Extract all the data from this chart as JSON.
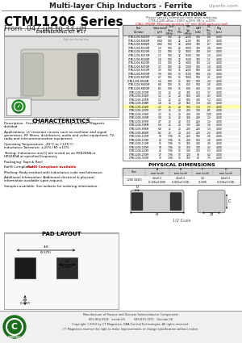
{
  "title_header": "Multi-layer Chip Inductors - Ferrite",
  "website": "ciparts.com",
  "series_title": "CTML1206 Series",
  "series_subtitle": "From .047 μH to 33 μH",
  "eng_kit": "ENGINEERING KIT #17",
  "characteristics_title": "CHARACTERISTICS",
  "char_lines": [
    "Description:  Ferrite core, multi-layer chip inductor. Magnetic",
    "shielded.",
    "",
    "Applications: LC resonant circuits such as oscillator and signal",
    "generators, RF filters, distributors, audio and video equipment, TV,",
    "radio and telecommunication equipment.",
    "",
    "Operating Temperature: -40°C to +125°C",
    "Inductance Tolerance: ±20% (M) ±10%",
    "",
    "Testing: Inductance and Q are tested on an HP4286A or",
    "HP4285A at specified frequency.",
    "",
    "Packaging: Tape & Reel",
    "",
    "RoHS Compliance: ||RoHS-Compliant available",
    "",
    "Marking: Body-marked with inductance code and tolerance.",
    "",
    "Additional Information: Additional electrical & physical",
    "information available upon request.",
    "",
    "Samples available. See website for ordering information."
  ],
  "pad_layout_title": "PAD LAYOUT",
  "spec_title": "SPECIFICATIONS",
  "spec_note1": "Please specify tolerance code when ordering.",
  "spec_note2": "CTML1206-xRxx / 1007 ±20% (M) x ±10%",
  "spec_note3": "(CALL ORDER) Minimum quantity 10\" reel (4000 parts per reel)",
  "spec_columns": [
    "Part\nNumber",
    "Inductance\n(μH)",
    "L Test\nFreq\n(MHz)",
    "Q\nMin.",
    "SRF\nTyp.\n(MHz)",
    "ISAT\n(mA)",
    "DC\nRes.\n(Ω)",
    "Pkg\n(pcs)"
  ],
  "spec_data": [
    [
      "CTML1206-R047M",
      ".047",
      "100",
      "12",
      "2200",
      "700",
      ".06",
      "4000"
    ],
    [
      "CTML1206-R068M",
      ".068",
      "100",
      "12",
      "2100",
      "700",
      ".07",
      "4000"
    ],
    [
      "CTML1206-R082M",
      ".082",
      "100",
      "12",
      "2000",
      "700",
      ".07",
      "4000"
    ],
    [
      "CTML1206-R100M",
      ".10",
      "100",
      "12",
      "1900",
      "700",
      ".08",
      "4000"
    ],
    [
      "CTML1206-R120M",
      ".12",
      "100",
      "12",
      "1800",
      "700",
      ".09",
      "4000"
    ],
    [
      "CTML1206-R150M",
      ".15",
      "100",
      "12",
      "1600",
      "700",
      ".10",
      "4000"
    ],
    [
      "CTML1206-R180M",
      ".18",
      "100",
      "12",
      "1500",
      "700",
      ".11",
      "4000"
    ],
    [
      "CTML1206-R220M",
      ".22",
      "100",
      "12",
      "1400",
      "700",
      ".12",
      "4000"
    ],
    [
      "CTML1206-R270M",
      ".27",
      "100",
      "12",
      "1300",
      "700",
      ".14",
      "4000"
    ],
    [
      "CTML1206-R330M",
      ".33",
      "100",
      "15",
      "1200",
      "600",
      ".16",
      "4000"
    ],
    [
      "CTML1206-R390M",
      ".39",
      "100",
      "15",
      "1100",
      "600",
      ".18",
      "4000"
    ],
    [
      "CTML1206-R470M",
      ".47",
      "100",
      "15",
      "1000",
      "500",
      ".21",
      "4000"
    ],
    [
      "CTML1206-R560M",
      ".56",
      "100",
      "15",
      "900",
      "500",
      ".24",
      "4000"
    ],
    [
      "CTML1206-R680M",
      ".68",
      "100",
      "15",
      "850",
      "500",
      ".28",
      "4000"
    ],
    [
      "CTML1206-R820M",
      ".82",
      "100",
      "15",
      "800",
      "450",
      ".32",
      "4000"
    ],
    [
      "CTML1206-1R0M",
      "1.0",
      "25",
      "20",
      "700",
      "450",
      ".37",
      "4000"
    ],
    [
      "CTML1206-1R2M",
      "1.2",
      "25",
      "20",
      "650",
      "400",
      ".43",
      "4000"
    ],
    [
      "CTML1206-1R5M",
      "1.5",
      "25",
      "20",
      "600",
      "400",
      ".52",
      "4000"
    ],
    [
      "CTML1206-1R8M",
      "1.8",
      "25",
      "20",
      "550",
      "350",
      ".60",
      "4000"
    ],
    [
      "CTML1206-2R2M",
      "2.2",
      "25",
      "20",
      "500",
      "350",
      ".72",
      "4000"
    ],
    [
      "CTML1206-2R7M",
      "2.7",
      "25",
      "20",
      "450",
      "300",
      ".85",
      "4000"
    ],
    [
      "CTML1206-3R3M",
      "3.3",
      "25",
      "20",
      "400",
      "300",
      "1.05",
      "4000"
    ],
    [
      "CTML1206-3R9M",
      "3.9",
      "25",
      "20",
      "380",
      "280",
      "1.2",
      "4000"
    ],
    [
      "CTML1206-4R7M",
      "4.7",
      "25",
      "20",
      "350",
      "260",
      "1.4",
      "4000"
    ],
    [
      "CTML1206-5R6M",
      "5.6",
      "25",
      "20",
      "300",
      "240",
      "1.6",
      "4000"
    ],
    [
      "CTML1206-6R8M",
      "6.8",
      "25",
      "20",
      "280",
      "220",
      "1.9",
      "4000"
    ],
    [
      "CTML1206-8R2M",
      "8.2",
      "25",
      "20",
      "250",
      "200",
      "2.2",
      "4000"
    ],
    [
      "CTML1206-100M",
      "10",
      "7.96",
      "15",
      "220",
      "180",
      "2.6",
      "4000"
    ],
    [
      "CTML1206-120M",
      "12",
      "7.96",
      "15",
      "200",
      "160",
      "3.0",
      "4000"
    ],
    [
      "CTML1206-150M",
      "15",
      "7.96",
      "15",
      "180",
      "140",
      "3.6",
      "4000"
    ],
    [
      "CTML1206-180M",
      "18",
      "7.96",
      "15",
      "160",
      "130",
      "4.3",
      "4000"
    ],
    [
      "CTML1206-220M",
      "22",
      "7.96",
      "15",
      "140",
      "110",
      "5.1",
      "4000"
    ],
    [
      "CTML1206-270M",
      "27",
      "7.96",
      "15",
      "120",
      "90",
      "6.2",
      "4000"
    ],
    [
      "CTML1206-330M",
      "33",
      "7.96",
      "15",
      "100",
      "80",
      "7.5",
      "4000"
    ]
  ],
  "highlight_row": 19,
  "phys_dim_title": "PHYSICAL DIMENSIONS",
  "phys_cols": [
    "Size",
    "A\nmm (inch)",
    "B\nmm (inch)",
    "C\nmm (inch)",
    "D\nmm (inch)"
  ],
  "phys_row": [
    "1206 (3216)",
    "3.2±0.2\n(0.126±0.008)",
    "1.6±0.2\n(0.063±0.008)",
    "1.0\n(0.039)",
    "0.4±0.2\n(0.016±0.008)"
  ],
  "footer_scale": "1/2 Scale",
  "company_lines": [
    "Manufacturer of Passive and Discrete Semiconductor Components",
    "800-854-5925   Inside US          949-833-1971   Outside US",
    "Copyright ©2010 by CT Magnetics, DBA Central Technologies, All rights reserved.",
    "(*) Magnetics reserve the right to make improvements or change specification without notice"
  ],
  "bg_color": "#ffffff",
  "rohs_color": "#cc0000",
  "header_bg": "#e8e8e8",
  "highlight_color": "#ffffaa"
}
